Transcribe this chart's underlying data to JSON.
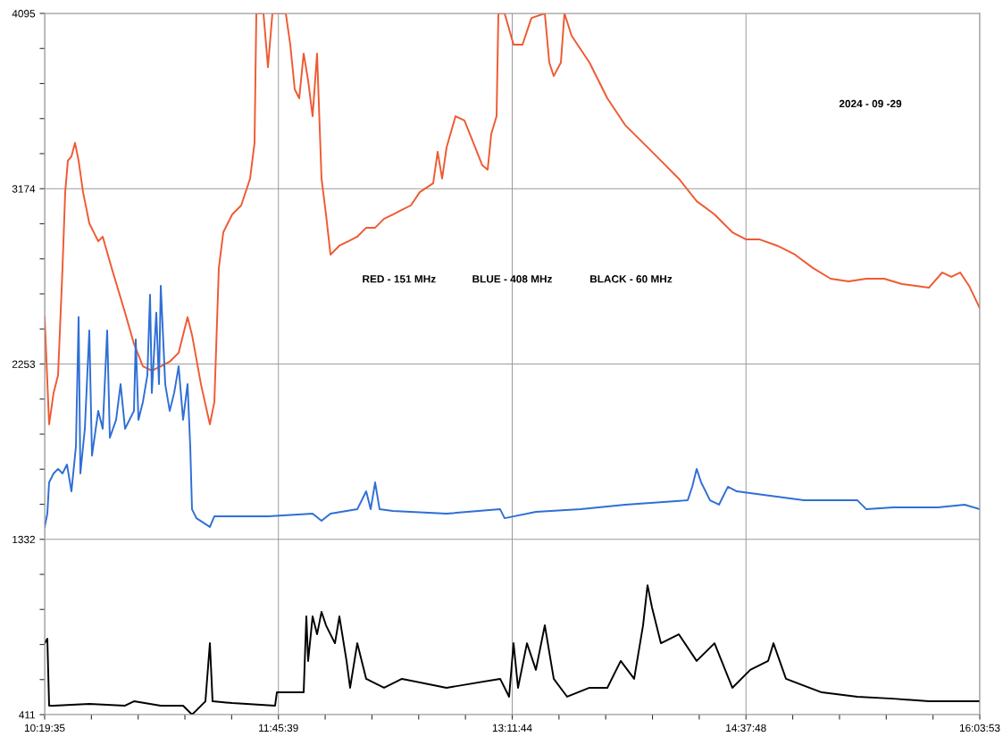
{
  "chart_data": {
    "type": "line",
    "xlim": [
      10.32639,
      16.06472
    ],
    "ylim": [
      411,
      4095
    ],
    "xticks": [
      {
        "value": 10.32639,
        "label": "10:19:35"
      },
      {
        "value": 10.61328,
        "label": null
      },
      {
        "value": 10.90017,
        "label": null
      },
      {
        "value": 11.18706,
        "label": null
      },
      {
        "value": 11.47394,
        "label": null
      },
      {
        "value": 11.76083,
        "label": "11:45:39"
      },
      {
        "value": 12.04778,
        "label": null
      },
      {
        "value": 12.33472,
        "label": null
      },
      {
        "value": 12.62167,
        "label": null
      },
      {
        "value": 12.90861,
        "label": null
      },
      {
        "value": 13.19556,
        "label": "13:11:44"
      },
      {
        "value": 13.48245,
        "label": null
      },
      {
        "value": 13.76933,
        "label": null
      },
      {
        "value": 14.05622,
        "label": null
      },
      {
        "value": 14.34311,
        "label": null
      },
      {
        "value": 14.63,
        "label": "14:37:48"
      },
      {
        "value": 14.91694,
        "label": null
      },
      {
        "value": 15.20389,
        "label": null
      },
      {
        "value": 15.49083,
        "label": null
      },
      {
        "value": 15.77778,
        "label": null
      },
      {
        "value": 16.06472,
        "label": "16:03:53"
      }
    ],
    "yticks": [
      411,
      {
        "value": 595.2,
        "label": null
      },
      {
        "value": 779.4,
        "label": null
      },
      {
        "value": 963.6,
        "label": null
      },
      {
        "value": 1147.8,
        "label": null
      },
      1332,
      {
        "value": 1516.2,
        "label": null
      },
      {
        "value": 1700.4,
        "label": null
      },
      {
        "value": 1884.6,
        "label": null
      },
      {
        "value": 2068.8,
        "label": null
      },
      2253,
      {
        "value": 2437.2,
        "label": null
      },
      {
        "value": 2621.4,
        "label": null
      },
      {
        "value": 2805.6,
        "label": null
      },
      {
        "value": 2989.8,
        "label": null
      },
      3174,
      {
        "value": 3358.2,
        "label": null
      },
      {
        "value": 3542.4,
        "label": null
      },
      {
        "value": 3726.6,
        "label": null
      },
      {
        "value": 3910.8,
        "label": null
      },
      4095
    ],
    "grid": true,
    "marker": "none",
    "line_style": "solid",
    "annotations": [
      "RED - 151 MHz",
      "BLUE - 408 MHz",
      "BLACK - 60 MHz",
      "2024 - 09 -29"
    ],
    "series": [
      {
        "color": "#ef5a32",
        "x": [
          10.3264,
          10.3538,
          10.3812,
          10.4086,
          10.436,
          10.4525,
          10.4689,
          10.4908,
          10.5127,
          10.5347,
          10.5621,
          10.6004,
          10.6552,
          10.6827,
          10.7375,
          10.8197,
          10.8745,
          10.9293,
          10.9841,
          11.0389,
          11.0937,
          11.1485,
          11.2033,
          11.2307,
          11.2855,
          11.3403,
          11.3678,
          11.3952,
          11.4226,
          11.4774,
          11.5322,
          11.587,
          11.6144,
          11.6253,
          11.6692,
          11.6966,
          11.724,
          11.7514,
          11.8062,
          11.8336,
          11.861,
          11.8884,
          11.9158,
          11.9432,
          11.9706,
          11.998,
          12.0254,
          12.0529,
          12.0803,
          12.1351,
          12.1899,
          12.2447,
          12.2995,
          12.3543,
          12.4091,
          12.4639,
          12.5187,
          12.5735,
          12.6283,
          12.7105,
          12.7379,
          12.7654,
          12.7928,
          12.8476,
          12.9024,
          12.9572,
          13.012,
          13.0449,
          13.0668,
          13.0996,
          13.1106,
          13.149,
          13.2038,
          13.2586,
          13.3134,
          13.3956,
          13.423,
          13.4504,
          13.4942,
          13.5161,
          13.56,
          13.6696,
          13.7792,
          13.8888,
          13.9984,
          14.108,
          14.2176,
          14.3272,
          14.4369,
          14.5465,
          14.6287,
          14.711,
          14.8206,
          14.9302,
          15.0398,
          15.1494,
          15.259,
          15.3687,
          15.4783,
          15.5879,
          15.7524,
          15.8346,
          15.8894,
          15.9442,
          15.999,
          16.0647
        ],
        "values": [
          2499,
          1936,
          2101,
          2194,
          2758,
          3156,
          3321,
          3344,
          3415,
          3321,
          3156,
          2992,
          2898,
          2922,
          2758,
          2523,
          2359,
          2241,
          2218,
          2241,
          2265,
          2312,
          2499,
          2406,
          2147,
          1936,
          2054,
          2758,
          2945,
          3039,
          3086,
          3227,
          3415,
          4095,
          4095,
          3813,
          4095,
          4095,
          4095,
          3931,
          3696,
          3649,
          3884,
          3743,
          3555,
          3884,
          3227,
          3039,
          2828,
          2875,
          2898,
          2922,
          2969,
          2969,
          3016,
          3039,
          3063,
          3086,
          3156,
          3203,
          3368,
          3227,
          3391,
          3555,
          3532,
          3415,
          3297,
          3274,
          3461,
          3555,
          4095,
          4095,
          3931,
          3931,
          4071,
          4095,
          3837,
          3766,
          3837,
          4095,
          3978,
          3837,
          3649,
          3508,
          3415,
          3321,
          3227,
          3109,
          3039,
          2945,
          2908,
          2908,
          2875,
          2828,
          2758,
          2701,
          2687,
          2701,
          2701,
          2673,
          2654,
          2734,
          2711,
          2734,
          2664,
          2546
        ]
      },
      {
        "color": "#2f6fd6",
        "x": [
          10.3264,
          10.3428,
          10.3538,
          10.3812,
          10.4086,
          10.436,
          10.4634,
          10.4908,
          10.5182,
          10.5347,
          10.5456,
          10.573,
          10.6004,
          10.6169,
          10.6552,
          10.6827,
          10.7101,
          10.7265,
          10.7649,
          10.7923,
          10.8197,
          10.8745,
          10.8854,
          10.9019,
          10.9293,
          10.9567,
          10.9731,
          10.9841,
          11.0115,
          11.0279,
          11.0389,
          11.0663,
          11.0937,
          11.1211,
          11.1485,
          11.1759,
          11.2033,
          11.2198,
          11.2307,
          11.2581,
          11.3403,
          11.3678,
          11.4226,
          11.6966,
          11.9706,
          12.0254,
          12.0803,
          12.2447,
          12.2995,
          12.3269,
          12.3543,
          12.3817,
          12.4639,
          12.7928,
          13.1216,
          13.149,
          13.3408,
          13.6149,
          13.8888,
          14.2725,
          14.3,
          14.3272,
          14.3548,
          14.4096,
          14.4644,
          14.5192,
          14.574,
          14.985,
          15.3139,
          15.3687,
          15.5332,
          15.8072,
          15.9716,
          16.0647
        ],
        "values": [
          1397,
          1467,
          1631,
          1678,
          1702,
          1678,
          1725,
          1584,
          1819,
          2499,
          1678,
          1913,
          2429,
          1772,
          2007,
          1913,
          2429,
          1866,
          1960,
          2147,
          1913,
          2007,
          2382,
          1960,
          2054,
          2194,
          2617,
          2101,
          2523,
          2147,
          2664,
          2147,
          2007,
          2101,
          2241,
          1960,
          2147,
          1819,
          1490,
          1443,
          1397,
          1453,
          1453,
          1453,
          1467,
          1429,
          1467,
          1490,
          1584,
          1490,
          1631,
          1490,
          1481,
          1467,
          1490,
          1443,
          1476,
          1490,
          1514,
          1537,
          1608,
          1702,
          1631,
          1537,
          1514,
          1608,
          1584,
          1537,
          1537,
          1490,
          1500,
          1500,
          1514,
          1490
        ]
      },
      {
        "color": "#000000",
        "x": [
          10.3264,
          10.3428,
          10.3538,
          10.3812,
          10.6004,
          10.8197,
          10.8745,
          11.0389,
          11.1759,
          11.2307,
          11.2581,
          11.3129,
          11.3403,
          11.3568,
          11.4774,
          11.7404,
          11.7514,
          11.9158,
          11.9323,
          11.9432,
          11.9706,
          11.998,
          12.0254,
          12.0529,
          12.1077,
          12.1351,
          12.1789,
          12.2008,
          12.2447,
          12.2995,
          12.4091,
          12.5187,
          12.7928,
          13.1216,
          13.1764,
          13.2038,
          13.2312,
          13.286,
          13.3408,
          13.3956,
          13.4504,
          13.5327,
          13.6696,
          13.7792,
          13.8615,
          13.9437,
          13.9984,
          14.0259,
          14.0533,
          14.108,
          14.2176,
          14.3272,
          14.4369,
          14.5465,
          14.6562,
          14.7658,
          14.7987,
          14.8755,
          15.0947,
          15.3139,
          15.5332,
          15.7524,
          16.0647
        ],
        "values": [
          786,
          810,
          458,
          458,
          467,
          458,
          481,
          458,
          458,
          411,
          434,
          481,
          786,
          481,
          472,
          458,
          528,
          528,
          927,
          693,
          927,
          833,
          951,
          880,
          786,
          927,
          693,
          552,
          786,
          599,
          552,
          599,
          552,
          599,
          505,
          786,
          552,
          786,
          646,
          880,
          599,
          505,
          552,
          552,
          693,
          599,
          880,
          1091,
          974,
          786,
          833,
          693,
          786,
          552,
          646,
          693,
          786,
          599,
          528,
          505,
          495,
          481,
          481
        ]
      }
    ]
  }
}
